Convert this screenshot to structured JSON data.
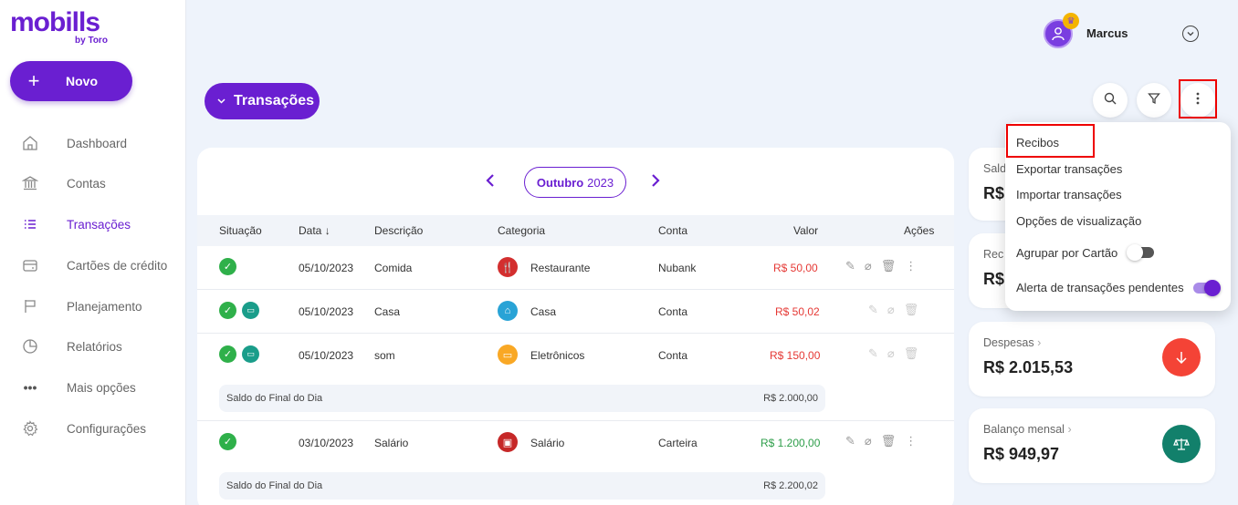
{
  "app": {
    "logo_main": "mobills",
    "logo_sub": "by Toro"
  },
  "sidebar": {
    "new_button": "Novo",
    "items": [
      {
        "label": "Dashboard",
        "icon": "home-icon"
      },
      {
        "label": "Contas",
        "icon": "bank-icon"
      },
      {
        "label": "Transações",
        "icon": "list-icon",
        "active": true
      },
      {
        "label": "Cartões de crédito",
        "icon": "credit-card-icon"
      },
      {
        "label": "Planejamento",
        "icon": "flag-icon"
      },
      {
        "label": "Relatórios",
        "icon": "pie-chart-icon"
      },
      {
        "label": "Mais opções",
        "icon": "more-horizontal-icon"
      },
      {
        "label": "Configurações",
        "icon": "gear-icon"
      }
    ]
  },
  "header": {
    "user_name": "Marcus",
    "transactions_button": "Transações"
  },
  "month": {
    "name": "Outubro",
    "year": "2023"
  },
  "table": {
    "headers": {
      "status": "Situação",
      "date": "Data",
      "description": "Descrição",
      "category": "Categoria",
      "account": "Conta",
      "value": "Valor",
      "actions": "Ações"
    },
    "rows": [
      {
        "date": "05/10/2023",
        "description": "Comida",
        "category": "Restaurante",
        "account": "Nubank",
        "value": "R$ 50,00"
      },
      {
        "date": "05/10/2023",
        "description": "Casa",
        "category": "Casa",
        "account": "Conta",
        "value": "R$ 50,02"
      },
      {
        "date": "05/10/2023",
        "description": "som",
        "category": "Eletrônicos",
        "account": "Conta",
        "value": "R$ 150,00"
      },
      {
        "date": "03/10/2023",
        "description": "Salário",
        "category": "Salário",
        "account": "Carteira",
        "value": "R$ 1.200,00"
      }
    ],
    "subtotals": [
      {
        "label": "Saldo do Final do Dia",
        "value": "R$ 2.000,00"
      },
      {
        "label": "Saldo do Final do Dia",
        "value": "R$ 2.200,02"
      }
    ]
  },
  "summary": {
    "saldo_title": "Sald",
    "saldo_value": "R$",
    "receitas_title": "Rec",
    "receitas_value": "R$",
    "despesas_title": "Despesas",
    "despesas_value": "R$ 2.015,53",
    "balanco_title": "Balanço mensal",
    "balanco_value": "R$ 949,97",
    "colors": {
      "despesas": "#f44336",
      "balanco": "#12806b"
    }
  },
  "menu": {
    "items": [
      "Recibos",
      "Exportar transações",
      "Importar transações",
      "Opções de visualização"
    ],
    "toggle_group_card": "Agrupar por Cartão",
    "toggle_pending_alert": "Alerta de transações pendentes",
    "group_card_on": false,
    "pending_alert_on": true
  },
  "colors": {
    "accent": "#6a1fd1",
    "expense": "#e53935",
    "income": "#2e9e4a"
  }
}
